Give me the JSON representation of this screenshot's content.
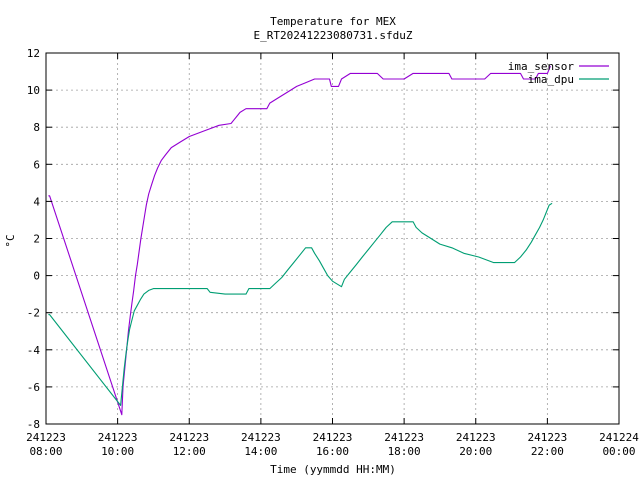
{
  "chart_data": {
    "type": "line",
    "title": "Temperature for MEX",
    "subtitle": "E_RT20241223080731.sfduZ",
    "xlabel": "Time (yymmdd HH:MM)",
    "ylabel": "°C",
    "xlim": [
      "2024-12-23 08:00",
      "2024-12-24 00:00"
    ],
    "ylim": [
      -8,
      12
    ],
    "grid": true,
    "legend_position": "top-right",
    "x_ticks": [
      {
        "date": "241223",
        "time": "08:00"
      },
      {
        "date": "241223",
        "time": "10:00"
      },
      {
        "date": "241223",
        "time": "12:00"
      },
      {
        "date": "241223",
        "time": "14:00"
      },
      {
        "date": "241223",
        "time": "16:00"
      },
      {
        "date": "241223",
        "time": "18:00"
      },
      {
        "date": "241223",
        "time": "20:00"
      },
      {
        "date": "241223",
        "time": "22:00"
      },
      {
        "date": "241224",
        "time": "00:00"
      }
    ],
    "y_ticks": [
      -8,
      -6,
      -4,
      -2,
      0,
      2,
      4,
      6,
      8,
      10,
      12
    ],
    "series": [
      {
        "name": "ima_sensor",
        "color": "#9400d3",
        "points": [
          [
            "2024-12-23 08:04",
            4.3
          ],
          [
            "2024-12-23 08:06",
            4.3
          ],
          [
            "2024-12-23 10:07",
            -7.5
          ],
          [
            "2024-12-23 10:09",
            -6.0
          ],
          [
            "2024-12-23 10:12",
            -5.0
          ],
          [
            "2024-12-23 10:15",
            -4.0
          ],
          [
            "2024-12-23 10:18",
            -3.0
          ],
          [
            "2024-12-23 10:21",
            -2.2
          ],
          [
            "2024-12-23 10:24",
            -1.5
          ],
          [
            "2024-12-23 10:27",
            -0.8
          ],
          [
            "2024-12-23 10:30",
            0.0
          ],
          [
            "2024-12-23 10:33",
            0.6
          ],
          [
            "2024-12-23 10:36",
            1.3
          ],
          [
            "2024-12-23 10:39",
            2.0
          ],
          [
            "2024-12-23 10:42",
            2.6
          ],
          [
            "2024-12-23 10:45",
            3.2
          ],
          [
            "2024-12-23 10:48",
            3.8
          ],
          [
            "2024-12-23 10:52",
            4.4
          ],
          [
            "2024-12-23 10:57",
            4.9
          ],
          [
            "2024-12-23 11:02",
            5.4
          ],
          [
            "2024-12-23 11:07",
            5.8
          ],
          [
            "2024-12-23 11:13",
            6.2
          ],
          [
            "2024-12-23 11:20",
            6.5
          ],
          [
            "2024-12-23 11:30",
            6.9
          ],
          [
            "2024-12-23 11:45",
            7.2
          ],
          [
            "2024-12-23 12:00",
            7.5
          ],
          [
            "2024-12-23 12:25",
            7.8
          ],
          [
            "2024-12-23 12:50",
            8.1
          ],
          [
            "2024-12-23 13:10",
            8.2
          ],
          [
            "2024-12-23 13:15",
            8.4
          ],
          [
            "2024-12-23 13:20",
            8.6
          ],
          [
            "2024-12-23 13:25",
            8.8
          ],
          [
            "2024-12-23 13:35",
            9.0
          ],
          [
            "2024-12-23 14:10",
            9.0
          ],
          [
            "2024-12-23 14:15",
            9.3
          ],
          [
            "2024-12-23 14:30",
            9.6
          ],
          [
            "2024-12-23 14:45",
            9.9
          ],
          [
            "2024-12-23 15:00",
            10.2
          ],
          [
            "2024-12-23 15:15",
            10.4
          ],
          [
            "2024-12-23 15:30",
            10.6
          ],
          [
            "2024-12-23 15:55",
            10.6
          ],
          [
            "2024-12-23 15:58",
            10.2
          ],
          [
            "2024-12-23 16:10",
            10.2
          ],
          [
            "2024-12-23 16:15",
            10.6
          ],
          [
            "2024-12-23 16:30",
            10.9
          ],
          [
            "2024-12-23 17:15",
            10.9
          ],
          [
            "2024-12-23 17:25",
            10.6
          ],
          [
            "2024-12-23 18:00",
            10.6
          ],
          [
            "2024-12-23 18:15",
            10.9
          ],
          [
            "2024-12-23 19:15",
            10.9
          ],
          [
            "2024-12-23 19:20",
            10.6
          ],
          [
            "2024-12-23 20:15",
            10.6
          ],
          [
            "2024-12-23 20:25",
            10.9
          ],
          [
            "2024-12-23 21:15",
            10.9
          ],
          [
            "2024-12-23 21:20",
            10.6
          ],
          [
            "2024-12-23 21:40",
            10.6
          ],
          [
            "2024-12-23 21:45",
            10.9
          ],
          [
            "2024-12-23 22:00",
            10.9
          ],
          [
            "2024-12-23 22:05",
            11.3
          ]
        ]
      },
      {
        "name": "ima_dpu",
        "color": "#009e73",
        "points": [
          [
            "2024-12-23 08:04",
            -2.1
          ],
          [
            "2024-12-23 08:06",
            -2.1
          ],
          [
            "2024-12-23 10:05",
            -7.0
          ],
          [
            "2024-12-23 10:08",
            -6.0
          ],
          [
            "2024-12-23 10:11",
            -5.0
          ],
          [
            "2024-12-23 10:14",
            -4.2
          ],
          [
            "2024-12-23 10:17",
            -3.5
          ],
          [
            "2024-12-23 10:20",
            -2.9
          ],
          [
            "2024-12-23 10:24",
            -2.4
          ],
          [
            "2024-12-23 10:28",
            -1.9
          ],
          [
            "2024-12-23 10:33",
            -1.6
          ],
          [
            "2024-12-23 10:38",
            -1.3
          ],
          [
            "2024-12-23 10:44",
            -1.0
          ],
          [
            "2024-12-23 10:52",
            -0.8
          ],
          [
            "2024-12-23 11:00",
            -0.7
          ],
          [
            "2024-12-23 12:30",
            -0.7
          ],
          [
            "2024-12-23 12:35",
            -0.9
          ],
          [
            "2024-12-23 13:00",
            -1.0
          ],
          [
            "2024-12-23 13:35",
            -1.0
          ],
          [
            "2024-12-23 13:40",
            -0.7
          ],
          [
            "2024-12-23 14:15",
            -0.7
          ],
          [
            "2024-12-23 14:25",
            -0.4
          ],
          [
            "2024-12-23 14:35",
            -0.1
          ],
          [
            "2024-12-23 14:45",
            0.3
          ],
          [
            "2024-12-23 14:55",
            0.7
          ],
          [
            "2024-12-23 15:05",
            1.1
          ],
          [
            "2024-12-23 15:15",
            1.5
          ],
          [
            "2024-12-23 15:25",
            1.5
          ],
          [
            "2024-12-23 15:30",
            1.2
          ],
          [
            "2024-12-23 15:38",
            0.8
          ],
          [
            "2024-12-23 15:45",
            0.4
          ],
          [
            "2024-12-23 15:52",
            0.0
          ],
          [
            "2024-12-23 16:00",
            -0.3
          ],
          [
            "2024-12-23 16:15",
            -0.6
          ],
          [
            "2024-12-23 16:20",
            -0.2
          ],
          [
            "2024-12-23 16:30",
            0.2
          ],
          [
            "2024-12-23 16:40",
            0.6
          ],
          [
            "2024-12-23 16:50",
            1.0
          ],
          [
            "2024-12-23 17:00",
            1.4
          ],
          [
            "2024-12-23 17:10",
            1.8
          ],
          [
            "2024-12-23 17:20",
            2.2
          ],
          [
            "2024-12-23 17:30",
            2.6
          ],
          [
            "2024-12-23 17:40",
            2.9
          ],
          [
            "2024-12-23 18:15",
            2.9
          ],
          [
            "2024-12-23 18:20",
            2.6
          ],
          [
            "2024-12-23 18:30",
            2.3
          ],
          [
            "2024-12-23 18:45",
            2.0
          ],
          [
            "2024-12-23 19:00",
            1.7
          ],
          [
            "2024-12-23 19:20",
            1.5
          ],
          [
            "2024-12-23 19:40",
            1.2
          ],
          [
            "2024-12-23 20:05",
            1.0
          ],
          [
            "2024-12-23 20:30",
            0.7
          ],
          [
            "2024-12-23 21:05",
            0.7
          ],
          [
            "2024-12-23 21:15",
            1.0
          ],
          [
            "2024-12-23 21:25",
            1.4
          ],
          [
            "2024-12-23 21:33",
            1.8
          ],
          [
            "2024-12-23 21:40",
            2.2
          ],
          [
            "2024-12-23 21:47",
            2.6
          ],
          [
            "2024-12-23 21:53",
            3.0
          ],
          [
            "2024-12-23 21:58",
            3.4
          ],
          [
            "2024-12-23 22:03",
            3.8
          ],
          [
            "2024-12-23 22:08",
            3.9
          ]
        ]
      }
    ]
  }
}
